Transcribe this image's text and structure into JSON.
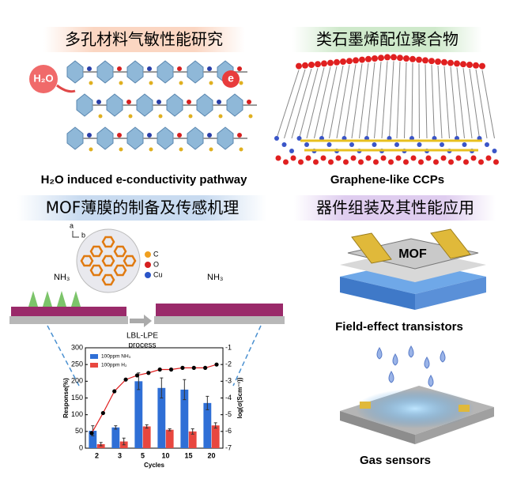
{
  "panels": [
    {
      "header": "多孔材料气敏性能研究",
      "caption": "H₂O induced e-conductivity pathway",
      "labels": [
        "H₂O",
        "e"
      ]
    },
    {
      "header": "类石墨烯配位聚合物",
      "caption": "Graphene-like CCPs"
    },
    {
      "header": "MOF薄膜的制备及传感机理",
      "labels": [
        "a",
        "b",
        "C",
        "O",
        "Cu",
        "NH₃",
        "NH₃",
        "LBL-LPE",
        "process"
      ]
    },
    {
      "header": "器件组装及其性能应用",
      "labels": [
        "MOF"
      ],
      "captions": [
        "Field-effect transistors",
        "Gas sensors"
      ]
    }
  ],
  "chart_data": {
    "type": "bar",
    "x_label": "Cycles",
    "y_label": "Response(%)",
    "y2_label": "log(σ(Scm⁻¹))",
    "categories": [
      "2",
      "3",
      "5",
      "10",
      "15",
      "20"
    ],
    "series": [
      {
        "name": "100ppm NH₃",
        "color": "#2f6fd6",
        "values": [
          52,
          62,
          200,
          180,
          175,
          135
        ],
        "errors": [
          15,
          5,
          25,
          30,
          30,
          20
        ]
      },
      {
        "name": "100ppm H₂",
        "color": "#e8473f",
        "values": [
          12,
          20,
          65,
          55,
          50,
          68
        ],
        "errors": [
          5,
          10,
          5,
          3,
          8,
          8
        ]
      },
      {
        "type": "scatter",
        "axis": "y2",
        "color": "#000000",
        "values": [
          -6.1,
          -4.9,
          -3.6,
          -2.9,
          -2.65,
          -2.5,
          -2.3,
          -2.3,
          -2.2,
          -2.2,
          -2.2,
          -2.0
        ]
      }
    ],
    "ylim": [
      0,
      300
    ],
    "yticks": [
      0,
      50,
      100,
      150,
      200,
      250,
      300
    ],
    "y2lim": [
      -7,
      -1
    ],
    "y2ticks": [
      -1,
      -2,
      -3,
      -4,
      -5,
      -6,
      -7
    ]
  }
}
